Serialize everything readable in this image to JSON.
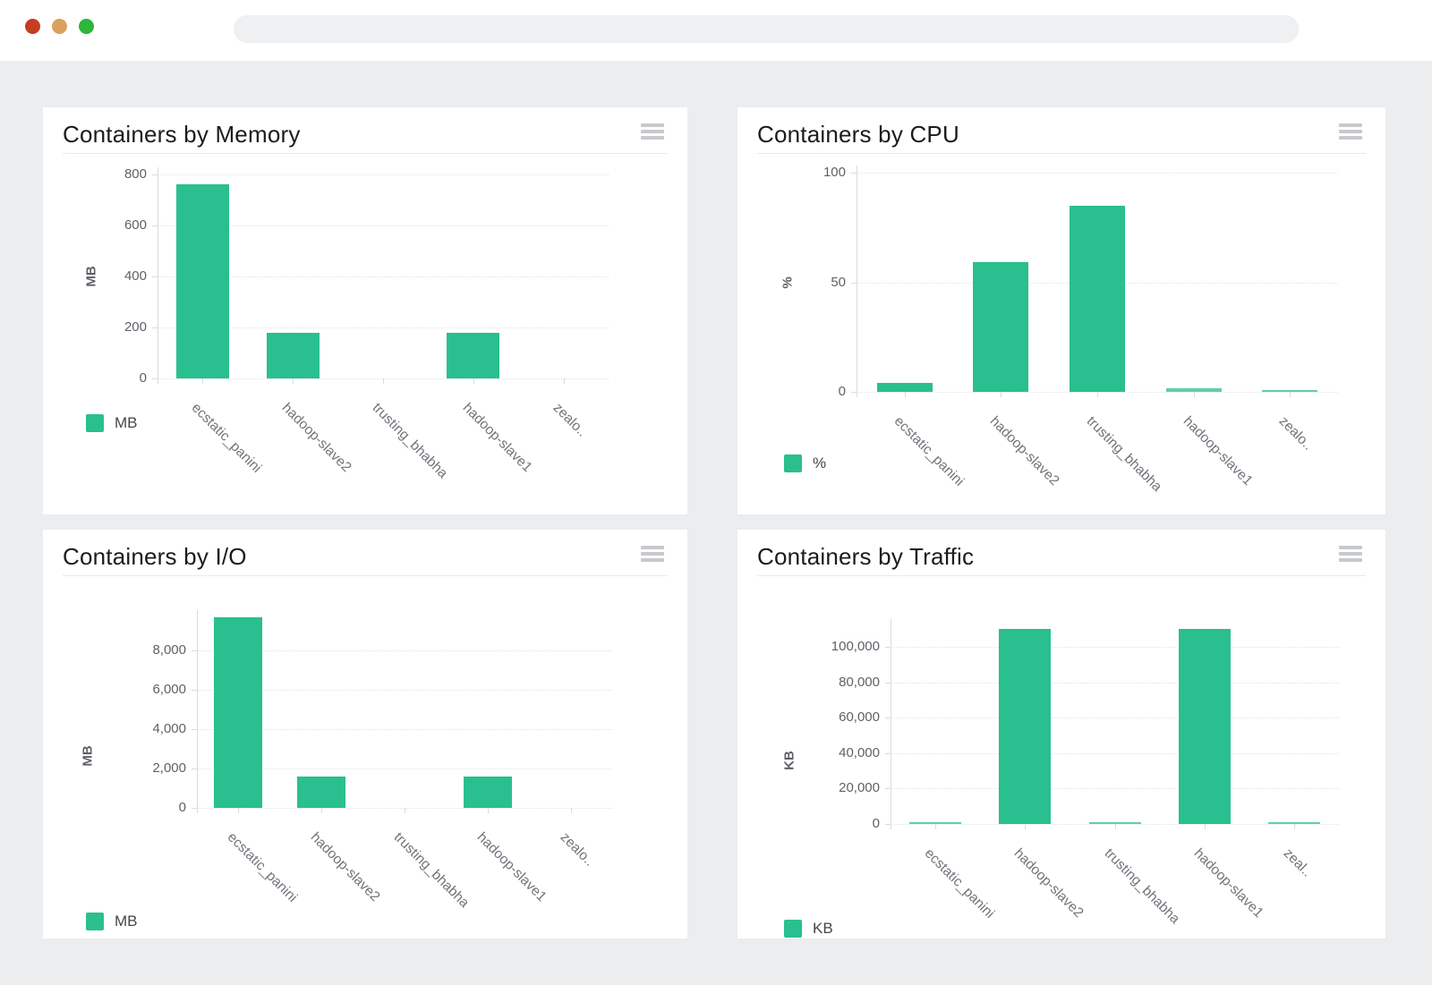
{
  "window": {
    "traffic_light_colors": [
      "#c53d22",
      "#d9a05e",
      "#2eb53c"
    ],
    "address_bar_value": ""
  },
  "theme": {
    "bar_color": "#29bf8e",
    "page_background": "#ebedee",
    "card_background": "#ffffff"
  },
  "icons": {
    "card_menu": "hamburger-menu-icon"
  },
  "chart_data": [
    {
      "type": "bar",
      "title": "Containers by Memory",
      "ylabel": "MB",
      "legend_label": "MB",
      "legend_position": "bottom-left",
      "grid": true,
      "categories": [
        "ecstatic_panini",
        "hadoop-slave2",
        "trusting_bhabha",
        "hadoop-slave1",
        "zealo.."
      ],
      "values": [
        760,
        180,
        0,
        180,
        0
      ],
      "y_ticks": [
        0,
        200,
        400,
        600,
        800
      ],
      "y_tick_labels": [
        "0",
        "200",
        "400",
        "600",
        "800"
      ],
      "ylim": [
        0,
        830
      ]
    },
    {
      "type": "bar",
      "title": "Containers by CPU",
      "ylabel": "%",
      "legend_label": "%",
      "legend_position": "bottom-left",
      "grid": true,
      "categories": [
        "ecstatic_panini",
        "hadoop-slave2",
        "trusting_bhabha",
        "hadoop-slave1",
        "zealo.."
      ],
      "values": [
        4,
        59,
        85,
        1.5,
        1
      ],
      "y_ticks": [
        0,
        50,
        100
      ],
      "y_tick_labels": [
        "0",
        "50",
        "100"
      ],
      "ylim": [
        0,
        104
      ]
    },
    {
      "type": "bar",
      "title": "Containers by I/O",
      "ylabel": "MB",
      "legend_label": "MB",
      "legend_position": "bottom-left",
      "grid": true,
      "categories": [
        "ecstatic_panini",
        "hadoop-slave2",
        "trusting_bhabha",
        "hadoop-slave1",
        "zealo.."
      ],
      "values": [
        9700,
        1600,
        0,
        1600,
        0
      ],
      "y_ticks": [
        0,
        2000,
        4000,
        6000,
        8000
      ],
      "y_tick_labels": [
        "0",
        "2,000",
        "4,000",
        "6,000",
        "8,000"
      ],
      "ylim": [
        0,
        10100
      ]
    },
    {
      "type": "bar",
      "title": "Containers by Traffic",
      "ylabel": "KB",
      "legend_label": "KB",
      "legend_position": "bottom-left",
      "grid": true,
      "categories": [
        "ecstatic_panini",
        "hadoop-slave2",
        "trusting_bhabha",
        "hadoop-slave1",
        "zeal.."
      ],
      "values": [
        600,
        110000,
        700,
        110000,
        700
      ],
      "y_ticks": [
        0,
        20000,
        40000,
        60000,
        80000,
        100000
      ],
      "y_tick_labels": [
        "0",
        "20,000",
        "40,000",
        "60,000",
        "80,000",
        "100,000"
      ],
      "ylim": [
        0,
        114500
      ]
    }
  ]
}
